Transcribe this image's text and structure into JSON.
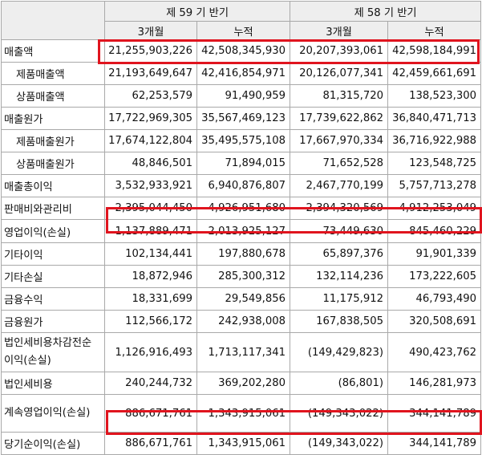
{
  "header": {
    "period_current": "제 59 기 반기",
    "period_prior": "제 58 기 반기",
    "sub_3month": "3개월",
    "sub_cumulative": "누적"
  },
  "rows": [
    {
      "label": "매출액",
      "values": [
        "21,255,903,226",
        "42,508,345,930",
        "20,207,393,061",
        "42,598,184,991"
      ]
    },
    {
      "label": "제품매출액",
      "values": [
        "21,193,649,647",
        "42,416,854,971",
        "20,126,077,341",
        "42,459,661,691"
      ]
    },
    {
      "label": "상품매출액",
      "values": [
        "62,253,579",
        "91,490,959",
        "81,315,720",
        "138,523,300"
      ]
    },
    {
      "label": "매출원가",
      "values": [
        "17,722,969,305",
        "35,567,469,123",
        "17,739,622,862",
        "36,840,471,713"
      ]
    },
    {
      "label": "제품매출원가",
      "values": [
        "17,674,122,804",
        "35,495,575,108",
        "17,667,970,334",
        "36,716,922,988"
      ]
    },
    {
      "label": "상품매출원가",
      "values": [
        "48,846,501",
        "71,894,015",
        "71,652,528",
        "123,548,725"
      ]
    },
    {
      "label": "매출총이익",
      "values": [
        "3,532,933,921",
        "6,940,876,807",
        "2,467,770,199",
        "5,757,713,278"
      ]
    },
    {
      "label": "판매비와관리비",
      "values": [
        "2,395,044,450",
        "4,926,951,680",
        "2,394,320,569",
        "4,912,253,049"
      ]
    },
    {
      "label": "영업이익(손실)",
      "values": [
        "1,137,889,471",
        "2,013,925,127",
        "73,449,630",
        "845,460,229"
      ]
    },
    {
      "label": "기타이익",
      "values": [
        "102,134,441",
        "197,880,678",
        "65,897,376",
        "91,901,339"
      ]
    },
    {
      "label": "기타손실",
      "values": [
        "18,872,946",
        "285,300,312",
        "132,114,236",
        "173,222,605"
      ]
    },
    {
      "label": "금융수익",
      "values": [
        "18,331,699",
        "29,549,856",
        "11,175,912",
        "46,793,490"
      ]
    },
    {
      "label": "금융원가",
      "values": [
        "112,566,172",
        "242,938,008",
        "167,838,505",
        "320,508,691"
      ]
    },
    {
      "label": "법인세비용차감전순이익(손실)",
      "values": [
        "1,126,916,493",
        "1,713,117,341",
        "(149,429,823)",
        "490,423,762"
      ]
    },
    {
      "label": "법인세비용",
      "values": [
        "240,244,732",
        "369,202,280",
        "(86,801)",
        "146,281,973"
      ]
    },
    {
      "label": "계속영업이익(손실)",
      "values": [
        "886,671,761",
        "1,343,915,061",
        "(149,343,022)",
        "344,141,789"
      ]
    },
    {
      "label": "당기순이익(손실)",
      "values": [
        "886,671,761",
        "1,343,915,061",
        "(149,343,022)",
        "344,141,789"
      ]
    }
  ],
  "highlight_color": "#e0141e"
}
